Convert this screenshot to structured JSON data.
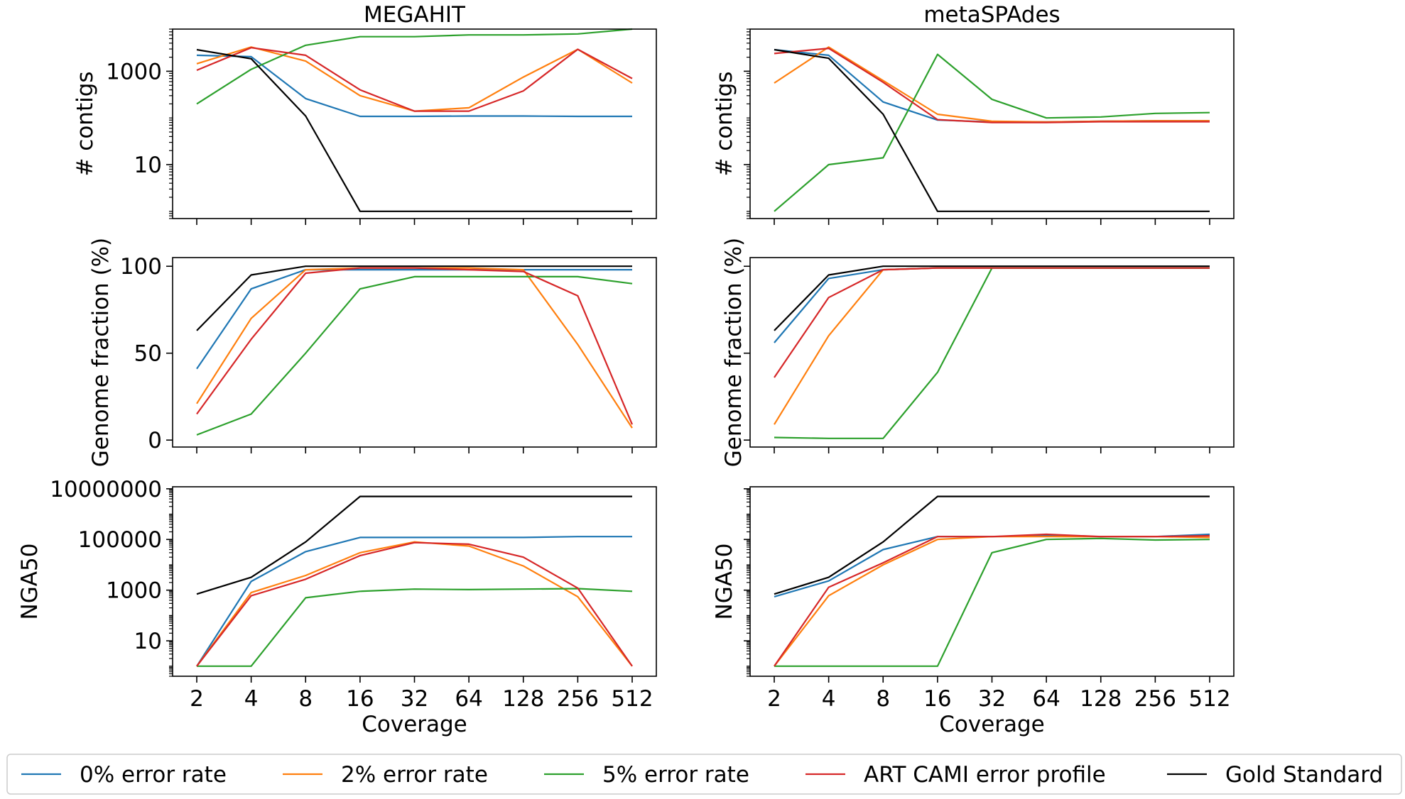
{
  "colors": {
    "0% error rate": "#1f77b4",
    "2% error rate": "#ff7f0e",
    "5% error rate": "#2ca02c",
    "ART CAMI error profile": "#d62728",
    "Gold Standard": "#000000"
  },
  "legend": {
    "placement": "bottom",
    "entries": [
      "0% error rate",
      "2% error rate",
      "5% error rate",
      "ART CAMI error profile",
      "Gold Standard"
    ]
  },
  "shared_x": {
    "label": "Coverage",
    "scale": "log2",
    "ticks": [
      "2",
      "4",
      "8",
      "16",
      "32",
      "64",
      "128",
      "256",
      "512"
    ]
  },
  "chart_data": [
    {
      "type": "line",
      "panel": "top-left",
      "title": "MEGAHIT",
      "ylabel": "# contigs",
      "yscale": "log",
      "ylim": [
        0.7,
        8000
      ],
      "yticks": [
        {
          "v": 10,
          "label": "10"
        },
        {
          "v": 1000,
          "label": "1000"
        }
      ],
      "x": [
        2,
        4,
        8,
        16,
        32,
        64,
        128,
        256,
        512
      ],
      "series": [
        {
          "name": "0% error rate",
          "values": [
            2200,
            2050,
            260,
            108,
            108,
            110,
            110,
            108,
            108
          ]
        },
        {
          "name": "2% error rate",
          "values": [
            1450,
            3300,
            1650,
            300,
            140,
            165,
            750,
            2950,
            560
          ]
        },
        {
          "name": "5% error rate",
          "values": [
            200,
            1100,
            3600,
            5500,
            5500,
            6000,
            6000,
            6300,
            8000
          ]
        },
        {
          "name": "ART CAMI error profile",
          "values": [
            1050,
            3200,
            2200,
            400,
            140,
            140,
            380,
            2950,
            700
          ]
        },
        {
          "name": "Gold Standard",
          "values": [
            2900,
            1850,
            110,
            1,
            1,
            1,
            1,
            1,
            1
          ]
        }
      ]
    },
    {
      "type": "line",
      "panel": "top-right",
      "title": "metaSPAdes",
      "ylabel": "# contigs",
      "yscale": "log",
      "ylim": [
        0.7,
        8000
      ],
      "yticks": [
        {
          "v": 10,
          "label": ""
        },
        {
          "v": 1000,
          "label": ""
        }
      ],
      "x": [
        2,
        4,
        8,
        16,
        32,
        64,
        128,
        256,
        512
      ],
      "series": [
        {
          "name": "0% error rate",
          "values": [
            2900,
            2200,
            220,
            90,
            82,
            82,
            85,
            87,
            87
          ]
        },
        {
          "name": "2% error rate",
          "values": [
            560,
            3300,
            630,
            120,
            85,
            82,
            85,
            87,
            87
          ]
        },
        {
          "name": "5% error rate",
          "values": [
            1,
            10,
            14,
            2300,
            250,
            100,
            105,
            125,
            130
          ]
        },
        {
          "name": "ART CAMI error profile",
          "values": [
            2400,
            3100,
            580,
            92,
            80,
            80,
            83,
            83,
            83
          ]
        },
        {
          "name": "Gold Standard",
          "values": [
            2900,
            1900,
            120,
            1,
            1,
            1,
            1,
            1,
            1
          ]
        }
      ]
    },
    {
      "type": "line",
      "panel": "middle-left",
      "title": "",
      "ylabel": "Genome fraction (%)",
      "yscale": "linear",
      "ylim": [
        -4,
        105
      ],
      "yticks": [
        {
          "v": 0,
          "label": "0"
        },
        {
          "v": 50,
          "label": "50"
        },
        {
          "v": 100,
          "label": "100"
        }
      ],
      "x": [
        2,
        4,
        8,
        16,
        32,
        64,
        128,
        256,
        512
      ],
      "series": [
        {
          "name": "0% error rate",
          "values": [
            41,
            87,
            98,
            98,
            98,
            98,
            98,
            98,
            98
          ]
        },
        {
          "name": "2% error rate",
          "values": [
            21,
            70,
            98,
            99,
            99,
            99,
            98,
            55,
            7
          ]
        },
        {
          "name": "5% error rate",
          "values": [
            3,
            15,
            50,
            87,
            94,
            94,
            94,
            94,
            90
          ]
        },
        {
          "name": "ART CAMI error profile",
          "values": [
            15,
            58,
            96,
            99,
            99,
            98,
            97,
            83,
            9
          ]
        },
        {
          "name": "Gold Standard",
          "values": [
            63,
            95,
            100,
            100,
            100,
            100,
            100,
            100,
            100
          ]
        }
      ]
    },
    {
      "type": "line",
      "panel": "middle-right",
      "title": "",
      "ylabel": "Genome fraction (%)",
      "yscale": "linear",
      "ylim": [
        -4,
        105
      ],
      "yticks": [
        {
          "v": 0,
          "label": ""
        },
        {
          "v": 50,
          "label": ""
        },
        {
          "v": 100,
          "label": ""
        }
      ],
      "x": [
        2,
        4,
        8,
        16,
        32,
        64,
        128,
        256,
        512
      ],
      "series": [
        {
          "name": "0% error rate",
          "values": [
            56,
            93,
            98,
            99,
            99,
            99,
            99,
            99,
            99
          ]
        },
        {
          "name": "2% error rate",
          "values": [
            9,
            60,
            98,
            99,
            99,
            99,
            99,
            99,
            99
          ]
        },
        {
          "name": "5% error rate",
          "values": [
            1.5,
            1,
            1,
            39,
            99,
            99,
            99,
            99,
            99
          ]
        },
        {
          "name": "ART CAMI error profile",
          "values": [
            36,
            82,
            98,
            99,
            99,
            99,
            99,
            99,
            99
          ]
        },
        {
          "name": "Gold Standard",
          "values": [
            63,
            95,
            100,
            100,
            100,
            100,
            100,
            100,
            100
          ]
        }
      ]
    },
    {
      "type": "line",
      "panel": "bottom-left",
      "title": "",
      "ylabel": "NGA50",
      "yscale": "log",
      "ylim": [
        0.4,
        12000000
      ],
      "yticks": [
        {
          "v": 10,
          "label": "10"
        },
        {
          "v": 1000,
          "label": "1000"
        },
        {
          "v": 100000,
          "label": "100000"
        },
        {
          "v": 10000000,
          "label": "10000000"
        }
      ],
      "x": [
        2,
        4,
        8,
        16,
        32,
        64,
        128,
        256,
        512
      ],
      "series": [
        {
          "name": "0% error rate",
          "values": [
            1,
            2200,
            33000,
            120000,
            120000,
            120000,
            120000,
            130000,
            130000
          ]
        },
        {
          "name": "2% error rate",
          "values": [
            1,
            800,
            3800,
            30000,
            80000,
            55000,
            9000,
            550,
            1
          ]
        },
        {
          "name": "5% error rate",
          "values": [
            1,
            1,
            500,
            900,
            1100,
            1050,
            1100,
            1150,
            900
          ]
        },
        {
          "name": "ART CAMI error profile",
          "values": [
            1,
            600,
            2700,
            23000,
            75000,
            65000,
            20000,
            1200,
            1
          ]
        },
        {
          "name": "Gold Standard",
          "values": [
            700,
            3200,
            80000,
            5000000,
            5000000,
            5000000,
            5000000,
            5000000,
            5000000
          ]
        }
      ]
    },
    {
      "type": "line",
      "panel": "bottom-right",
      "title": "",
      "ylabel": "NGA50",
      "yscale": "log",
      "ylim": [
        0.4,
        12000000
      ],
      "yticks": [
        {
          "v": 10,
          "label": ""
        },
        {
          "v": 1000,
          "label": ""
        },
        {
          "v": 100000,
          "label": ""
        },
        {
          "v": 10000000,
          "label": ""
        }
      ],
      "xlabel": "Coverage",
      "x": [
        2,
        4,
        8,
        16,
        32,
        64,
        128,
        256,
        512
      ],
      "series": [
        {
          "name": "0% error rate",
          "values": [
            550,
            2300,
            40000,
            130000,
            130000,
            140000,
            130000,
            130000,
            160000
          ]
        },
        {
          "name": "2% error rate",
          "values": [
            1,
            600,
            10000,
            100000,
            130000,
            130000,
            130000,
            130000,
            120000
          ]
        },
        {
          "name": "5% error rate",
          "values": [
            1,
            1,
            1,
            1,
            30000,
            100000,
            110000,
            95000,
            100000
          ]
        },
        {
          "name": "ART CAMI error profile",
          "values": [
            1,
            1300,
            12000,
            130000,
            130000,
            160000,
            130000,
            130000,
            140000
          ]
        },
        {
          "name": "Gold Standard",
          "values": [
            700,
            3200,
            80000,
            5000000,
            5000000,
            5000000,
            5000000,
            5000000,
            5000000
          ]
        }
      ]
    }
  ]
}
